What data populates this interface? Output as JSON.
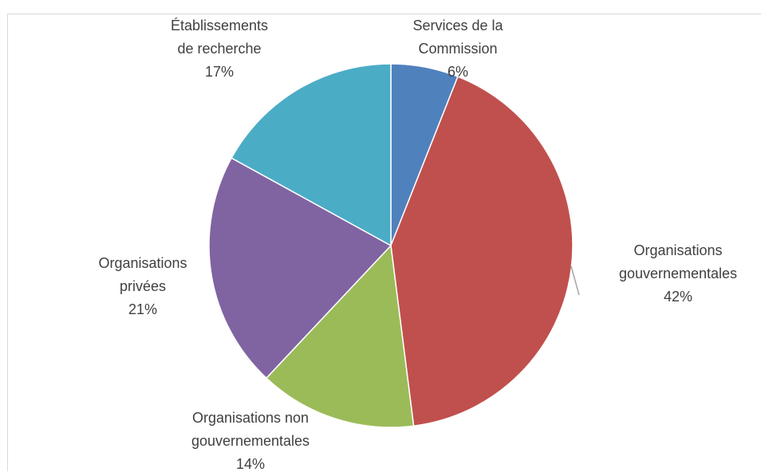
{
  "chart_data": {
    "type": "pie",
    "slices": [
      {
        "label_lines": [
          "Services de la",
          "Commission"
        ],
        "value": 6,
        "value_label": "6%",
        "color": "#4f81bd"
      },
      {
        "label_lines": [
          "Organisations",
          "gouvernementales"
        ],
        "value": 42,
        "value_label": "42%",
        "color": "#c0504d"
      },
      {
        "label_lines": [
          "Organisations non",
          "gouvernementales"
        ],
        "value": 14,
        "value_label": "14%",
        "color": "#9bbb59"
      },
      {
        "label_lines": [
          "Organisations",
          "privées"
        ],
        "value": 21,
        "value_label": "21%",
        "color": "#8064a2"
      },
      {
        "label_lines": [
          "Établissements",
          "de recherche"
        ],
        "value": 17,
        "value_label": "17%",
        "color": "#4bacc6"
      }
    ],
    "start_angle": "12 o'clock",
    "direction": "clockwise",
    "legend": "none",
    "data_labels": "outside"
  }
}
